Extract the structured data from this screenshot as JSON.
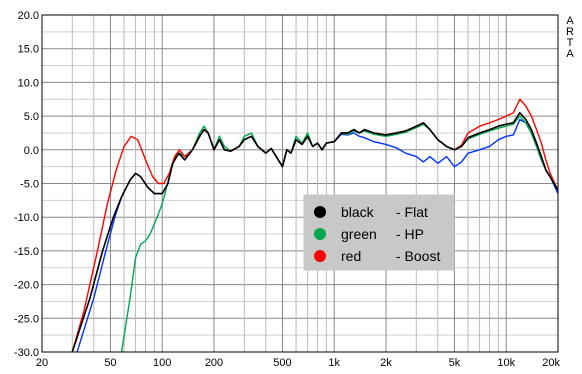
{
  "chart_data": {
    "type": "line",
    "title": "",
    "xlabel": "",
    "ylabel": "",
    "x_scale": "log",
    "xlim": [
      20,
      20000
    ],
    "ylim": [
      -30,
      20
    ],
    "grid": true,
    "watermark": [
      "A",
      "R",
      "T",
      "A"
    ],
    "y_ticks": [
      "20.0",
      "15.0",
      "10.0",
      "5.0",
      "0.0",
      "-5.0",
      "-10.0",
      "-15.0",
      "-20.0",
      "-25.0",
      "-30.0"
    ],
    "x_ticks": [
      {
        "value": 20,
        "label": "20"
      },
      {
        "value": 50,
        "label": "50"
      },
      {
        "value": 100,
        "label": "100"
      },
      {
        "value": 200,
        "label": "200"
      },
      {
        "value": 500,
        "label": "500"
      },
      {
        "value": 1000,
        "label": "1k"
      },
      {
        "value": 2000,
        "label": "2k"
      },
      {
        "value": 5000,
        "label": "5k"
      },
      {
        "value": 10000,
        "label": "10k"
      },
      {
        "value": 20000,
        "label": "20k"
      }
    ],
    "legend": {
      "position": "center-right",
      "entries": [
        {
          "name": "black",
          "desc": "- Flat",
          "color": "#000000"
        },
        {
          "name": "green",
          "desc": "- HP",
          "color": "#00a651"
        },
        {
          "name": "red",
          "desc": "- Boost",
          "color": "#ff0000"
        }
      ]
    },
    "series": [
      {
        "name": "black",
        "color": "#000000",
        "points": [
          [
            30,
            -30
          ],
          [
            38,
            -22
          ],
          [
            45,
            -15
          ],
          [
            52,
            -10
          ],
          [
            58,
            -7
          ],
          [
            65,
            -4.5
          ],
          [
            70,
            -3.5
          ],
          [
            75,
            -4
          ],
          [
            82,
            -5.5
          ],
          [
            90,
            -6.5
          ],
          [
            100,
            -6.5
          ],
          [
            108,
            -5
          ],
          [
            115,
            -2
          ],
          [
            125,
            -0.5
          ],
          [
            135,
            -1.5
          ],
          [
            150,
            0
          ],
          [
            165,
            2
          ],
          [
            175,
            3
          ],
          [
            185,
            2.5
          ],
          [
            200,
            0
          ],
          [
            215,
            1.5
          ],
          [
            230,
            0
          ],
          [
            250,
            -0.2
          ],
          [
            280,
            0.5
          ],
          [
            300,
            1.5
          ],
          [
            330,
            2
          ],
          [
            360,
            0.5
          ],
          [
            400,
            -0.5
          ],
          [
            430,
            0.2
          ],
          [
            460,
            -1
          ],
          [
            500,
            -2.5
          ],
          [
            530,
            0
          ],
          [
            560,
            -0.5
          ],
          [
            600,
            1.5
          ],
          [
            650,
            0.8
          ],
          [
            700,
            2
          ],
          [
            750,
            0.5
          ],
          [
            800,
            1
          ],
          [
            850,
            0
          ],
          [
            900,
            1
          ],
          [
            1000,
            1.2
          ],
          [
            1100,
            2.5
          ],
          [
            1200,
            2.5
          ],
          [
            1300,
            3
          ],
          [
            1400,
            2.5
          ],
          [
            1500,
            3
          ],
          [
            1700,
            2.5
          ],
          [
            2000,
            2.2
          ],
          [
            2300,
            2.5
          ],
          [
            2600,
            2.8
          ],
          [
            3000,
            3.5
          ],
          [
            3300,
            4
          ],
          [
            3600,
            3
          ],
          [
            4000,
            1.5
          ],
          [
            4500,
            0.5
          ],
          [
            5000,
            0
          ],
          [
            5500,
            0.5
          ],
          [
            6000,
            1.8
          ],
          [
            7000,
            2.5
          ],
          [
            8000,
            3
          ],
          [
            9000,
            3.5
          ],
          [
            10000,
            3.8
          ],
          [
            11000,
            4
          ],
          [
            12000,
            5.5
          ],
          [
            13000,
            4.5
          ],
          [
            14000,
            3
          ],
          [
            15000,
            1
          ],
          [
            16000,
            -1
          ],
          [
            17000,
            -3
          ],
          [
            18000,
            -4
          ],
          [
            20000,
            -6
          ]
        ]
      },
      {
        "name": "green",
        "color": "#00a651",
        "points": [
          [
            58,
            -30
          ],
          [
            65,
            -22
          ],
          [
            70,
            -16
          ],
          [
            75,
            -14
          ],
          [
            80,
            -13.5
          ],
          [
            85,
            -12.5
          ],
          [
            90,
            -11
          ],
          [
            95,
            -9.5
          ],
          [
            100,
            -8
          ],
          [
            105,
            -6
          ],
          [
            112,
            -3
          ],
          [
            120,
            -1
          ],
          [
            128,
            -0.5
          ],
          [
            135,
            -1
          ],
          [
            150,
            0
          ],
          [
            165,
            2.5
          ],
          [
            175,
            3.5
          ],
          [
            185,
            2.5
          ],
          [
            200,
            0
          ],
          [
            215,
            2
          ],
          [
            230,
            0.5
          ],
          [
            250,
            -0.2
          ],
          [
            280,
            0.5
          ],
          [
            300,
            2
          ],
          [
            330,
            2.5
          ],
          [
            360,
            0.5
          ],
          [
            400,
            -0.5
          ],
          [
            430,
            0.2
          ],
          [
            460,
            -1
          ],
          [
            500,
            -2.5
          ],
          [
            530,
            0
          ],
          [
            560,
            -0.5
          ],
          [
            600,
            2
          ],
          [
            650,
            1
          ],
          [
            700,
            2.5
          ],
          [
            750,
            0.5
          ],
          [
            800,
            1
          ],
          [
            850,
            0
          ],
          [
            900,
            1
          ],
          [
            1000,
            1.2
          ],
          [
            1100,
            2.5
          ],
          [
            1200,
            2.3
          ],
          [
            1300,
            2.8
          ],
          [
            1400,
            2.5
          ],
          [
            1500,
            2.8
          ],
          [
            1700,
            2.3
          ],
          [
            2000,
            2
          ],
          [
            2300,
            2.3
          ],
          [
            2600,
            2.6
          ],
          [
            3000,
            3.3
          ],
          [
            3300,
            3.8
          ],
          [
            3600,
            3
          ],
          [
            4000,
            1.5
          ],
          [
            4500,
            0.5
          ],
          [
            5000,
            0
          ],
          [
            5500,
            0.5
          ],
          [
            6000,
            1.6
          ],
          [
            7000,
            2.3
          ],
          [
            8000,
            2.8
          ],
          [
            9000,
            3.2
          ],
          [
            10000,
            3.5
          ],
          [
            11000,
            3.8
          ],
          [
            12000,
            5
          ],
          [
            13000,
            4
          ],
          [
            14000,
            2.5
          ],
          [
            15000,
            0.5
          ],
          [
            16000,
            -1.5
          ],
          [
            17000,
            -3
          ],
          [
            18000,
            -4
          ],
          [
            20000,
            -6
          ]
        ]
      },
      {
        "name": "red",
        "color": "#ff0000",
        "points": [
          [
            30,
            -30
          ],
          [
            35,
            -24
          ],
          [
            42,
            -15
          ],
          [
            48,
            -8
          ],
          [
            54,
            -3
          ],
          [
            60,
            0.5
          ],
          [
            66,
            2
          ],
          [
            72,
            1.5
          ],
          [
            80,
            -1.5
          ],
          [
            88,
            -4
          ],
          [
            95,
            -5
          ],
          [
            102,
            -5
          ],
          [
            110,
            -3.5
          ],
          [
            118,
            -1
          ],
          [
            126,
            0
          ],
          [
            135,
            -1
          ],
          [
            150,
            0
          ],
          [
            165,
            2
          ],
          [
            175,
            3
          ],
          [
            185,
            2.5
          ],
          [
            200,
            0
          ],
          [
            215,
            1.5
          ],
          [
            230,
            0
          ],
          [
            250,
            -0.2
          ],
          [
            280,
            0.5
          ],
          [
            300,
            1.5
          ],
          [
            330,
            2
          ],
          [
            360,
            0.5
          ],
          [
            400,
            -0.5
          ],
          [
            430,
            0.2
          ],
          [
            460,
            -1
          ],
          [
            500,
            -2.5
          ],
          [
            530,
            0
          ],
          [
            560,
            -0.5
          ],
          [
            600,
            1.5
          ],
          [
            650,
            0.8
          ],
          [
            700,
            2
          ],
          [
            750,
            0.5
          ],
          [
            800,
            1
          ],
          [
            850,
            0
          ],
          [
            900,
            1
          ],
          [
            1000,
            1.2
          ],
          [
            1100,
            2.5
          ],
          [
            1200,
            2.5
          ],
          [
            1300,
            3
          ],
          [
            1400,
            2.5
          ],
          [
            1500,
            3
          ],
          [
            1700,
            2.5
          ],
          [
            2000,
            2.2
          ],
          [
            2300,
            2.5
          ],
          [
            2600,
            2.8
          ],
          [
            3000,
            3.5
          ],
          [
            3300,
            4
          ],
          [
            3600,
            3
          ],
          [
            4000,
            1.5
          ],
          [
            4500,
            0.5
          ],
          [
            5000,
            0
          ],
          [
            5500,
            0.7
          ],
          [
            6000,
            2.5
          ],
          [
            7000,
            3.5
          ],
          [
            8000,
            4
          ],
          [
            9000,
            4.5
          ],
          [
            10000,
            5
          ],
          [
            11000,
            5.5
          ],
          [
            12000,
            7.5
          ],
          [
            13000,
            6.5
          ],
          [
            14000,
            5
          ],
          [
            15000,
            3
          ],
          [
            16000,
            1
          ],
          [
            17000,
            -1.5
          ],
          [
            18000,
            -3.5
          ],
          [
            20000,
            -6
          ]
        ]
      },
      {
        "name": "blue",
        "color": "#0033ff",
        "points": [
          [
            32,
            -30
          ],
          [
            40,
            -22
          ],
          [
            47,
            -15
          ],
          [
            53,
            -10
          ],
          [
            58,
            -7
          ],
          [
            65,
            -4.5
          ],
          [
            70,
            -3.5
          ],
          [
            75,
            -4
          ],
          [
            82,
            -5.5
          ],
          [
            90,
            -6.5
          ],
          [
            100,
            -6.5
          ],
          [
            108,
            -5
          ],
          [
            115,
            -2
          ],
          [
            125,
            -0.5
          ],
          [
            135,
            -1.5
          ],
          [
            150,
            0
          ],
          [
            165,
            2
          ],
          [
            175,
            3
          ],
          [
            185,
            2.5
          ],
          [
            200,
            0
          ],
          [
            215,
            1.5
          ],
          [
            230,
            0
          ],
          [
            250,
            -0.2
          ],
          [
            280,
            0.5
          ],
          [
            300,
            1.5
          ],
          [
            330,
            2
          ],
          [
            360,
            0.5
          ],
          [
            400,
            -0.5
          ],
          [
            430,
            0.2
          ],
          [
            460,
            -1
          ],
          [
            500,
            -2.5
          ],
          [
            530,
            0
          ],
          [
            560,
            -0.5
          ],
          [
            600,
            1.5
          ],
          [
            650,
            0.8
          ],
          [
            700,
            2
          ],
          [
            750,
            0.5
          ],
          [
            800,
            1
          ],
          [
            850,
            0
          ],
          [
            900,
            1
          ],
          [
            1000,
            1.2
          ],
          [
            1100,
            2.3
          ],
          [
            1200,
            2.2
          ],
          [
            1300,
            2.5
          ],
          [
            1400,
            2
          ],
          [
            1500,
            1.8
          ],
          [
            1700,
            1.2
          ],
          [
            2000,
            0.8
          ],
          [
            2300,
            0.3
          ],
          [
            2600,
            -0.5
          ],
          [
            3000,
            -1
          ],
          [
            3300,
            -1.8
          ],
          [
            3600,
            -1
          ],
          [
            4000,
            -2
          ],
          [
            4500,
            -1
          ],
          [
            5000,
            -2.5
          ],
          [
            5500,
            -1.8
          ],
          [
            6000,
            -0.5
          ],
          [
            7000,
            0
          ],
          [
            8000,
            0.5
          ],
          [
            9000,
            1.5
          ],
          [
            10000,
            2
          ],
          [
            11000,
            2.2
          ],
          [
            12000,
            4.5
          ],
          [
            13000,
            4
          ],
          [
            14000,
            2.5
          ],
          [
            15000,
            0.5
          ],
          [
            16000,
            -1.5
          ],
          [
            17000,
            -3
          ],
          [
            18000,
            -4
          ],
          [
            20000,
            -6.5
          ]
        ]
      }
    ]
  }
}
